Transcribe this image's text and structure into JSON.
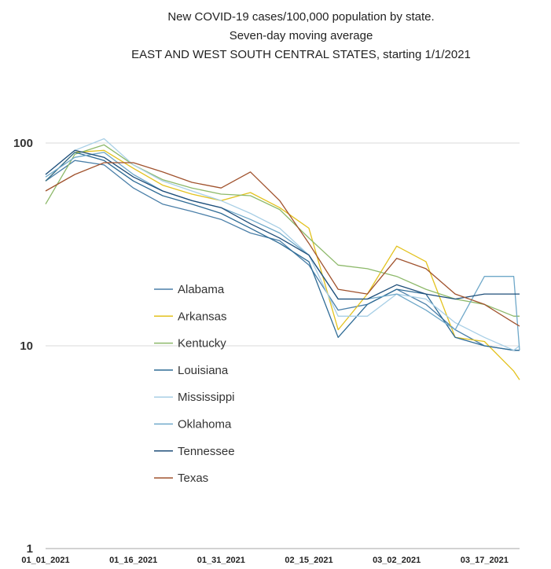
{
  "chart_data": {
    "type": "line",
    "title": [
      "New COVID-19 cases/100,000 population by state.",
      "Seven-day moving average",
      "EAST AND WEST SOUTH CENTRAL STATES, starting 1/1/2021"
    ],
    "y_scale": "log",
    "ylim": [
      1,
      100
    ],
    "y_ticks": [
      1,
      10,
      100
    ],
    "x_ticks": [
      "01_01_2021",
      "01_16_2021",
      "01_31_2021",
      "02_15_2021",
      "03_02_2021",
      "03_17_2021"
    ],
    "x_tick_positions": [
      0,
      15,
      30,
      45,
      60,
      75
    ],
    "x_range": [
      0,
      81
    ],
    "grid": true,
    "legend_position": "center-left",
    "x": [
      0,
      5,
      10,
      15,
      20,
      25,
      30,
      35,
      40,
      45,
      50,
      55,
      60,
      65,
      70,
      75,
      80,
      81
    ],
    "series": [
      {
        "name": "Alabama",
        "color": "#4a7fa8",
        "values": [
          65,
          82,
          78,
          60,
          50,
          46,
          42,
          36,
          33,
          25,
          15,
          16,
          19,
          16,
          12,
          10,
          9.5,
          9.5
        ]
      },
      {
        "name": "Arkansas",
        "color": "#e3c21e",
        "values": [
          65,
          90,
          92,
          75,
          62,
          56,
          52,
          57,
          48,
          38,
          12,
          18,
          31,
          26,
          11,
          10.5,
          7.5,
          6.8
        ]
      },
      {
        "name": "Kentucky",
        "color": "#8db96a",
        "values": [
          50,
          88,
          98,
          78,
          66,
          60,
          56,
          55,
          47,
          34,
          25,
          24,
          22,
          19,
          17,
          16,
          14,
          14
        ]
      },
      {
        "name": "Louisiana",
        "color": "#2e6b95",
        "values": [
          65,
          90,
          82,
          65,
          55,
          50,
          45,
          38,
          32,
          26,
          11,
          16,
          19,
          18,
          11,
          10,
          9.5,
          9.5
        ]
      },
      {
        "name": "Mississippi",
        "color": "#a8cfe6",
        "values": [
          70,
          92,
          105,
          78,
          65,
          58,
          52,
          45,
          38,
          28,
          14,
          14,
          18,
          17,
          13,
          11,
          9.5,
          10
        ]
      },
      {
        "name": "Oklahoma",
        "color": "#6fa8c9",
        "values": [
          68,
          85,
          90,
          70,
          58,
          52,
          48,
          42,
          36,
          28,
          17,
          17,
          18,
          15,
          12,
          22,
          22,
          9.5
        ]
      },
      {
        "name": "Tennessee",
        "color": "#1f4e79",
        "values": [
          70,
          92,
          85,
          68,
          58,
          52,
          48,
          40,
          34,
          28,
          17,
          17,
          20,
          18,
          17,
          18,
          18,
          18
        ]
      },
      {
        "name": "Texas",
        "color": "#a0522d",
        "values": [
          58,
          70,
          80,
          80,
          72,
          64,
          60,
          72,
          52,
          32,
          19,
          18,
          27,
          24,
          18,
          16,
          13,
          12.5
        ]
      }
    ]
  }
}
